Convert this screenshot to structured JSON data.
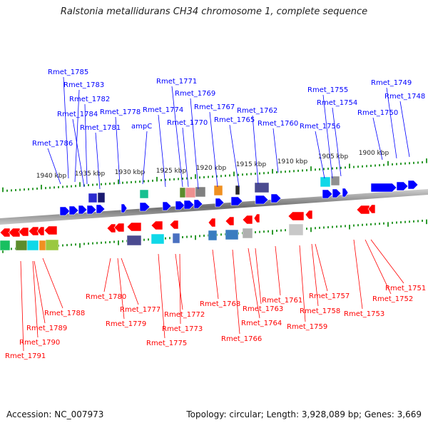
{
  "title": "Ralstonia metallidurans CH34 chromosome 1, complete sequence",
  "accession": "Accession: NC_007973",
  "summary": "Topology: circular; Length: 3,928,089 bp; Genes: 3,669",
  "scale_labels": [
    "1940 kbp",
    "1935 kbp",
    "1930 kbp",
    "1925 kbp",
    "1920 kbp",
    "1915 kbp",
    "1910 kbp",
    "1905 kbp",
    "1900 kbp"
  ],
  "forward_genes": [
    "Rmet_1785",
    "Rmet_1783",
    "Rmet_1782",
    "Rmet_1784",
    "Rmet_1781",
    "Rmet_1786",
    "Rmet_1778",
    "ampC",
    "Rmet_1774",
    "Rmet_1771",
    "Rmet_1769",
    "Rmet_1770",
    "Rmet_1767",
    "Rmet_1765",
    "Rmet_1762",
    "Rmet_1760",
    "Rmet_1755",
    "Rmet_1754",
    "Rmet_1756",
    "Rmet_1749",
    "Rmet_1748",
    "Rmet_1750"
  ],
  "reverse_genes": [
    "Rmet_1780",
    "Rmet_1777",
    "Rmet_1779",
    "Rmet_1788",
    "Rmet_1789",
    "Rmet_1790",
    "Rmet_1791",
    "Rmet_1772",
    "Rmet_1773",
    "Rmet_1775",
    "Rmet_1768",
    "Rmet_1766",
    "Rmet_1764",
    "Rmet_1763",
    "Rmet_1761",
    "Rmet_1759",
    "Rmet_1758",
    "Rmet_1757",
    "Rmet_1753",
    "Rmet_1752",
    "Rmet_1751"
  ],
  "colors": {
    "forward": "#0000ff",
    "reverse": "#ff0000",
    "backbone": "#808080",
    "ticks": "#2e9a2e"
  }
}
